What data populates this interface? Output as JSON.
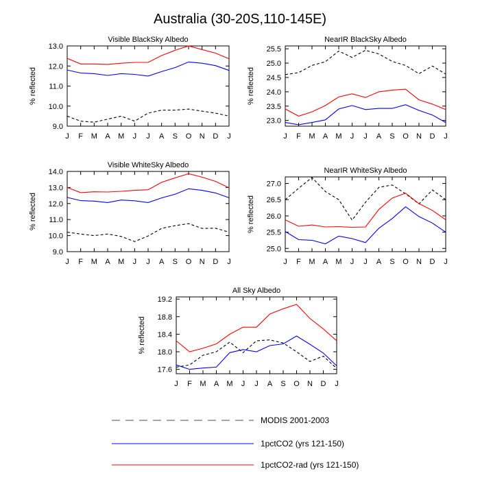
{
  "figure": {
    "title": "Australia (30-20S,110-145E)"
  },
  "legend": [
    {
      "name": "MODIS 2001-2003",
      "color": "#000000",
      "dash": true
    },
    {
      "name": "1pctCO2 (yrs 121-150)",
      "color": "#0000ff",
      "dash": false
    },
    {
      "name": "1pctCO2-rad (yrs 121-150)",
      "color": "#ff0000",
      "dash": false
    }
  ],
  "chart_data": [
    {
      "type": "line",
      "title": "Visible BlackSky Albedo",
      "ylabel": "% reflected",
      "x": [
        "J",
        "F",
        "M",
        "A",
        "M",
        "J",
        "J",
        "A",
        "S",
        "O",
        "N",
        "D",
        "J"
      ],
      "ylim": [
        9.0,
        13.0
      ],
      "yticks": [
        9.0,
        10.0,
        11.0,
        12.0,
        13.0
      ],
      "tick_labels": [
        "9.0",
        "10.0",
        "11.0",
        "12.0",
        "13.0"
      ],
      "series": [
        {
          "name": "MODIS 2001-2003",
          "values": [
            9.5,
            9.25,
            9.2,
            9.35,
            9.5,
            9.25,
            9.65,
            9.8,
            9.8,
            9.85,
            9.75,
            9.65,
            9.5
          ]
        },
        {
          "name": "1pctCO2 (yrs 121-150)",
          "values": [
            11.8,
            11.65,
            11.62,
            11.53,
            11.62,
            11.58,
            11.5,
            11.72,
            11.92,
            12.2,
            12.14,
            12.02,
            11.78
          ]
        },
        {
          "name": "1pctCO2-rad (yrs 121-150)",
          "values": [
            12.38,
            12.1,
            12.1,
            12.08,
            12.14,
            12.18,
            12.18,
            12.52,
            12.78,
            13.0,
            12.82,
            12.64,
            12.36
          ]
        }
      ]
    },
    {
      "type": "line",
      "title": "NearIR BlackSky Albedo",
      "ylabel": "% reflected",
      "x": [
        "J",
        "F",
        "M",
        "A",
        "M",
        "J",
        "J",
        "A",
        "S",
        "O",
        "N",
        "D",
        "J"
      ],
      "ylim": [
        22.8,
        25.6
      ],
      "yticks": [
        23.0,
        23.5,
        24.0,
        24.5,
        25.0,
        25.5
      ],
      "tick_labels": [
        "23.0",
        "23.5",
        "24.0",
        "24.5",
        "25.0",
        "25.5"
      ],
      "series": [
        {
          "name": "MODIS 2001-2003",
          "values": [
            24.6,
            24.67,
            24.92,
            25.05,
            25.42,
            25.2,
            25.45,
            25.32,
            25.06,
            24.92,
            24.63,
            24.9,
            24.62
          ]
        },
        {
          "name": "1pctCO2 (yrs 121-150)",
          "values": [
            22.93,
            22.85,
            22.93,
            23.02,
            23.4,
            23.52,
            23.38,
            23.42,
            23.42,
            23.55,
            23.35,
            23.19,
            22.93
          ]
        },
        {
          "name": "1pctCO2-rad (yrs 121-150)",
          "values": [
            23.4,
            23.15,
            23.3,
            23.52,
            23.82,
            23.93,
            23.8,
            24.0,
            24.06,
            24.09,
            23.72,
            23.57,
            23.38
          ]
        }
      ]
    },
    {
      "type": "line",
      "title": "Visible WhiteSky Albedo",
      "ylabel": "% reflected",
      "x": [
        "J",
        "F",
        "M",
        "A",
        "M",
        "J",
        "J",
        "A",
        "S",
        "O",
        "N",
        "D",
        "J"
      ],
      "ylim": [
        9.0,
        14.0
      ],
      "yticks": [
        9.0,
        10.0,
        11.0,
        12.0,
        13.0,
        14.0
      ],
      "tick_labels": [
        "9.0",
        "10.0",
        "11.0",
        "12.0",
        "13.0",
        "14.0"
      ],
      "series": [
        {
          "name": "MODIS 2001-2003",
          "values": [
            10.22,
            10.1,
            10.0,
            10.1,
            9.95,
            9.63,
            9.98,
            10.45,
            10.62,
            10.75,
            10.45,
            10.46,
            10.22
          ]
        },
        {
          "name": "1pctCO2 (yrs 121-150)",
          "values": [
            12.38,
            12.18,
            12.15,
            12.06,
            12.22,
            12.17,
            12.06,
            12.35,
            12.58,
            12.92,
            12.82,
            12.66,
            12.36
          ]
        },
        {
          "name": "1pctCO2-rad (yrs 121-150)",
          "values": [
            13.0,
            12.68,
            12.73,
            12.72,
            12.76,
            12.82,
            12.86,
            13.32,
            13.6,
            13.86,
            13.64,
            13.38,
            12.98
          ]
        }
      ]
    },
    {
      "type": "line",
      "title": "NearIR WhiteSky Albedo",
      "ylabel": "% reflected",
      "x": [
        "J",
        "F",
        "M",
        "A",
        "M",
        "J",
        "J",
        "A",
        "S",
        "O",
        "N",
        "D",
        "J"
      ],
      "ylim": [
        24.9,
        27.2
      ],
      "yticks": [
        25.0,
        25.5,
        26.0,
        26.5,
        27.0
      ],
      "tick_labels": [
        "25.0",
        "25.5",
        "26.0",
        "26.5",
        "27.0"
      ],
      "series": [
        {
          "name": "MODIS 2001-2003",
          "values": [
            26.5,
            26.85,
            27.18,
            26.75,
            26.5,
            25.87,
            26.42,
            26.88,
            26.95,
            26.68,
            26.37,
            26.8,
            26.5
          ]
        },
        {
          "name": "1pctCO2 (yrs 121-150)",
          "values": [
            25.52,
            25.27,
            25.25,
            25.14,
            25.38,
            25.3,
            25.18,
            25.62,
            25.92,
            26.28,
            25.98,
            25.78,
            25.5
          ]
        },
        {
          "name": "1pctCO2-rad (yrs 121-150)",
          "values": [
            25.88,
            25.68,
            25.72,
            25.66,
            25.67,
            25.65,
            25.66,
            26.2,
            26.55,
            26.7,
            26.38,
            26.17,
            25.88
          ]
        }
      ]
    },
    {
      "type": "line",
      "title": "All Sky Albedo",
      "ylabel": "% reflected",
      "x": [
        "J",
        "F",
        "M",
        "A",
        "M",
        "J",
        "J",
        "A",
        "S",
        "O",
        "N",
        "D",
        "J"
      ],
      "ylim": [
        17.5,
        19.25
      ],
      "yticks": [
        17.6,
        18.0,
        18.4,
        18.8,
        19.2
      ],
      "tick_labels": [
        "17.6",
        "18.0",
        "18.4",
        "18.8",
        "19.2"
      ],
      "series": [
        {
          "name": "MODIS 2001-2003",
          "values": [
            17.65,
            17.7,
            17.92,
            18.0,
            18.22,
            17.98,
            18.25,
            18.27,
            18.2,
            18.0,
            17.78,
            17.9,
            17.62
          ]
        },
        {
          "name": "1pctCO2 (yrs 121-150)",
          "values": [
            17.7,
            17.6,
            17.63,
            17.65,
            17.98,
            18.05,
            18.0,
            18.14,
            18.18,
            18.36,
            18.17,
            17.97,
            17.68
          ]
        },
        {
          "name": "1pctCO2-rad (yrs 121-150)",
          "values": [
            18.25,
            18.0,
            18.08,
            18.18,
            18.4,
            18.56,
            18.56,
            18.86,
            18.98,
            19.08,
            18.76,
            18.52,
            18.25
          ]
        }
      ]
    }
  ]
}
